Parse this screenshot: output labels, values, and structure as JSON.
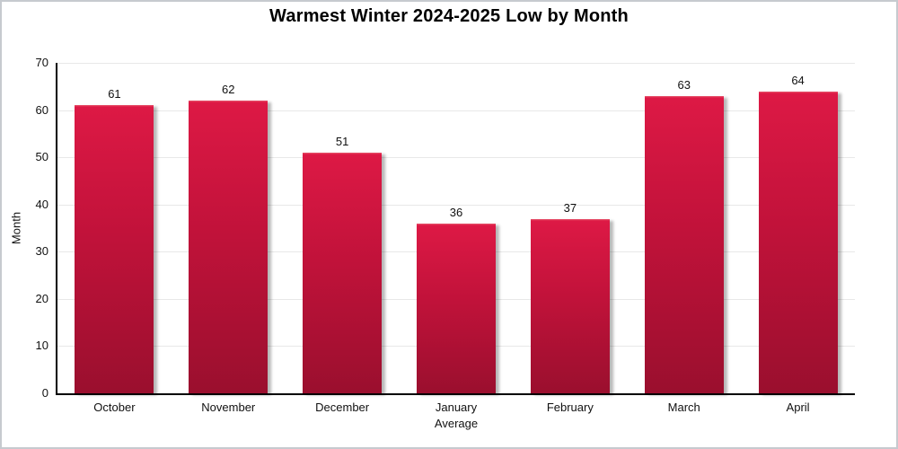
{
  "card": {
    "background": "#ffffff",
    "border_color": "#c6cacf"
  },
  "chart_data": {
    "type": "bar",
    "title": "Warmest Winter 2024-2025 Low by Month",
    "categories": [
      "October",
      "November",
      "December",
      "January",
      "February",
      "March",
      "April"
    ],
    "values": [
      61,
      62,
      51,
      36,
      37,
      63,
      64
    ],
    "xlabel": "Average",
    "ylabel": "Month",
    "ylim": [
      0,
      70
    ],
    "yticks": [
      0,
      10,
      20,
      30,
      40,
      50,
      60,
      70
    ],
    "grid": true,
    "legend_position": "none",
    "data_labels_shown": true,
    "bar_gradient_top": "#dd1945",
    "bar_gradient_mid": "#c1123a",
    "bar_gradient_bottom": "#9a0f2e",
    "axis_color": "#000000",
    "gridline_color": "#e8e8e8",
    "text_color": "#111111"
  }
}
